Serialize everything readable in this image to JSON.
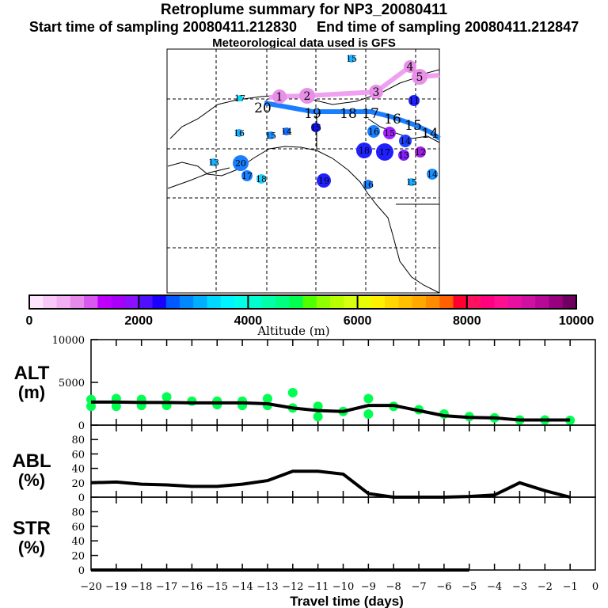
{
  "header": {
    "title": "Retroplume summary for NP3_20080411",
    "subtitle": "Start time of sampling 20080411.212830     End time of sampling 20080411.212847",
    "met": "Meteorological data used is GFS"
  },
  "colorbar": {
    "label": "Altitude (m)",
    "ticks": [
      "0",
      "2000",
      "4000",
      "6000",
      "8000",
      "10000"
    ],
    "colors": [
      "#fde6fd",
      "#f8c8f8",
      "#f2aef2",
      "#e68ce8",
      "#d858f0",
      "#c000ff",
      "#a800f8",
      "#8a10ff",
      "#5010ff",
      "#1a00ff",
      "#0058ff",
      "#0088ff",
      "#00b0ff",
      "#00d8ff",
      "#00f4ff",
      "#00ffe6",
      "#00ffd0",
      "#00ffa8",
      "#00ff80",
      "#00ff50",
      "#50ff00",
      "#90ff00",
      "#b8ff00",
      "#d8ff10",
      "#e8ff00",
      "#fff000",
      "#ffd800",
      "#ffc000",
      "#ffa800",
      "#ff8c00",
      "#ff6000",
      "#ff0030",
      "#ff1060",
      "#ff0080",
      "#ff1090",
      "#e810a0",
      "#d010a0",
      "#b80898",
      "#980080",
      "#700060"
    ]
  },
  "map": {
    "pink_labels": [
      "1",
      "2",
      "3",
      "4",
      "5"
    ],
    "blue_labels": [
      "20",
      "19",
      "18",
      "17",
      "16",
      "15",
      "14"
    ],
    "markers": [
      "15",
      "17",
      "11",
      "15",
      "16",
      "15",
      "14",
      "16",
      "15",
      "18",
      "17",
      "14",
      "13",
      "12",
      "13",
      "20",
      "17",
      "18",
      "19",
      "16",
      "15",
      "14"
    ],
    "marker_colors": [
      "#1ab0ff",
      "#00d8ff",
      "#2020ff",
      "#1010e0",
      "#1ab0ff",
      "#1a90ff",
      "#1070ff",
      "#1a7fff",
      "#a020ff",
      "#2020ff",
      "#2020ff",
      "#2040ff",
      "#8020ff",
      "#a020e0",
      "#1ab0ff",
      "#1a7fff",
      "#1a7fff",
      "#1ad0ff",
      "#2020ff",
      "#1a7fff",
      "#1ab0ff",
      "#1a90ff"
    ],
    "pink_color": "#f0a0f0",
    "blue_color": "#1a7fff"
  },
  "chart_data": [
    {
      "type": "line",
      "panel_label": "ALT",
      "panel_unit": "(m)",
      "x": [
        -20,
        -19,
        -18,
        -17,
        -16,
        -15,
        -14,
        -13,
        -12,
        -11,
        -10,
        -9,
        -8,
        -7,
        -6,
        -5,
        -4,
        -3,
        -2,
        -1
      ],
      "values": [
        2700,
        2700,
        2650,
        2650,
        2600,
        2600,
        2600,
        2500,
        2000,
        1700,
        1600,
        2300,
        2300,
        1700,
        1100,
        900,
        850,
        600,
        600,
        600
      ],
      "scatter": [
        [
          -20,
          3000
        ],
        [
          -20,
          2200
        ],
        [
          -19,
          3100
        ],
        [
          -19,
          2200
        ],
        [
          -18,
          3000
        ],
        [
          -18,
          2300
        ],
        [
          -17,
          3300
        ],
        [
          -17,
          2300
        ],
        [
          -16,
          2800
        ],
        [
          -15,
          2800
        ],
        [
          -15,
          2400
        ],
        [
          -14,
          2800
        ],
        [
          -14,
          2300
        ],
        [
          -13,
          3100
        ],
        [
          -13,
          2300
        ],
        [
          -12,
          3800
        ],
        [
          -12,
          2000
        ],
        [
          -11,
          2200
        ],
        [
          -11,
          1000
        ],
        [
          -10,
          1600
        ],
        [
          -9,
          3100
        ],
        [
          -9,
          1300
        ],
        [
          -8,
          2200
        ],
        [
          -7,
          1800
        ],
        [
          -6,
          1300
        ],
        [
          -5,
          1000
        ],
        [
          -4,
          850
        ],
        [
          -3,
          600
        ],
        [
          -2,
          600
        ],
        [
          -1,
          550
        ]
      ],
      "ylim": [
        0,
        10000
      ],
      "yticks": [
        "0",
        "5000",
        "10000"
      ]
    },
    {
      "type": "line",
      "panel_label": "ABL",
      "panel_unit": "(%)",
      "x": [
        -20,
        -19,
        -18,
        -17,
        -16,
        -15,
        -14,
        -13,
        -12,
        -11,
        -10,
        -9,
        -8,
        -7,
        -6,
        -5,
        -4,
        -3,
        -2,
        -1
      ],
      "values": [
        20,
        21,
        18,
        17,
        15,
        15,
        18,
        23,
        36,
        36,
        32,
        5,
        0,
        0,
        0,
        1,
        3,
        20,
        9,
        0
      ],
      "ylim": [
        0,
        100
      ],
      "yticks": [
        "0",
        "20",
        "40",
        "60",
        "80"
      ]
    },
    {
      "type": "line",
      "panel_label": "STR",
      "panel_unit": "(%)",
      "x": [
        -20,
        -19,
        -18,
        -17,
        -16,
        -15,
        -14,
        -13,
        -12,
        -11,
        -10,
        -9,
        -8,
        -7,
        -6,
        -5
      ],
      "values": [
        0,
        0,
        0,
        0,
        0,
        0,
        0,
        0,
        0,
        0,
        0,
        0,
        0,
        0,
        0,
        0
      ],
      "ylim": [
        0,
        100
      ],
      "yticks": [
        "0",
        "20",
        "40",
        "60",
        "80"
      ]
    }
  ],
  "xaxis": {
    "label": "Travel time (days)",
    "ticks": [
      "−20",
      "−19",
      "−18",
      "−17",
      "−16",
      "−15",
      "−14",
      "−13",
      "−12",
      "−11",
      "−10",
      "−9",
      "−8",
      "−7",
      "−6",
      "−5",
      "−4",
      "−3",
      "−2",
      "−1",
      "0"
    ],
    "xlim": [
      -20,
      0
    ]
  }
}
